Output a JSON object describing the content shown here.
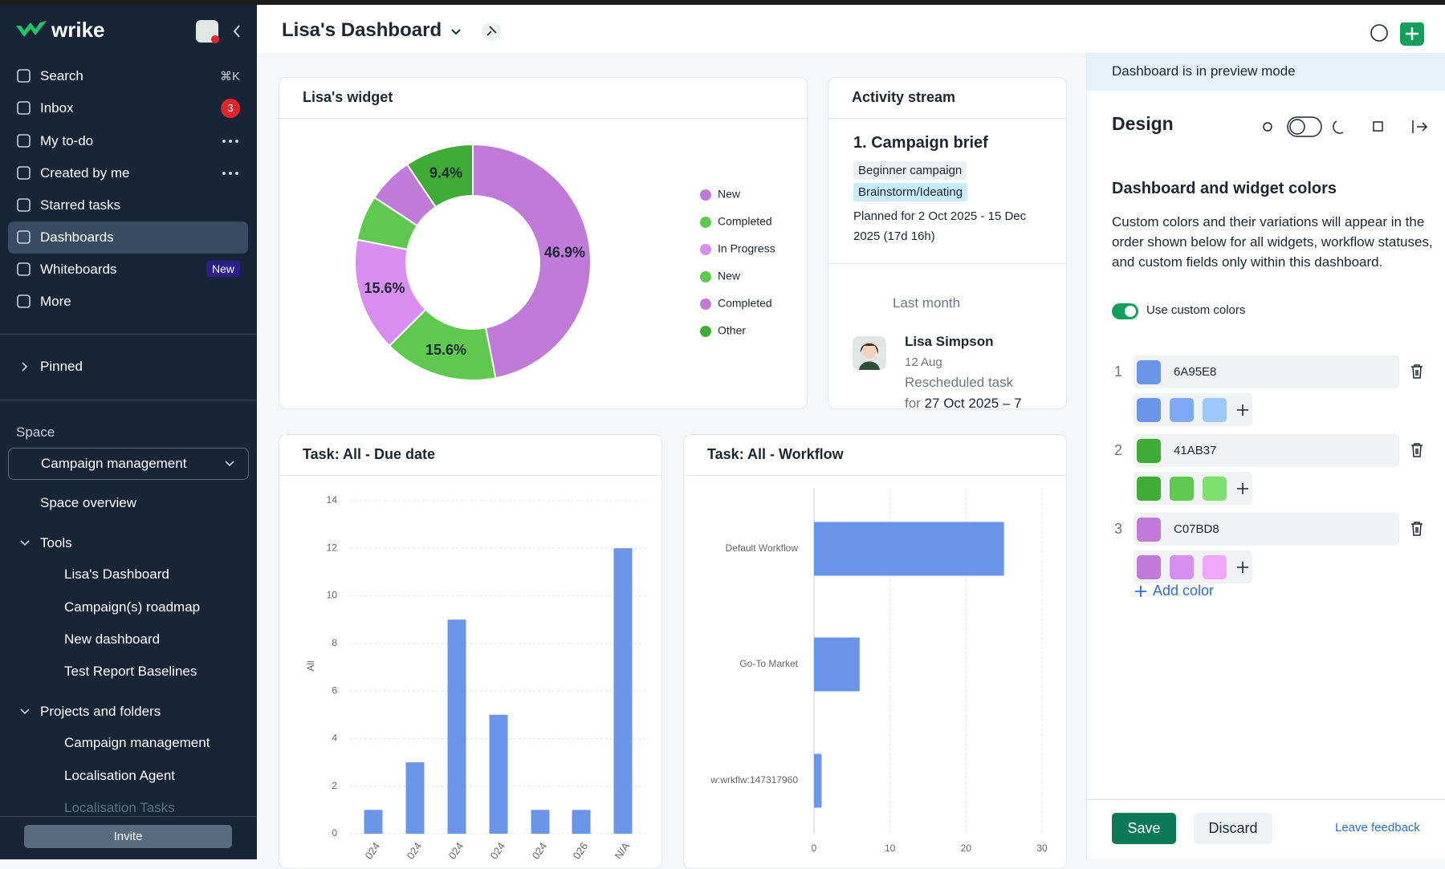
{
  "sidebar": {
    "logo": "wrike",
    "nav": [
      {
        "label": "Search",
        "shortcut": "⌘K"
      },
      {
        "label": "Inbox",
        "badge": "3"
      },
      {
        "label": "My to-do"
      },
      {
        "label": "Created by me"
      },
      {
        "label": "Starred tasks"
      },
      {
        "label": "Dashboards"
      },
      {
        "label": "Whiteboards",
        "badge": "New"
      },
      {
        "label": "More"
      }
    ],
    "pinned": "Pinned",
    "space_heading": "Space",
    "space": "Campaign management",
    "space_overview": "Space overview",
    "tools": {
      "label": "Tools",
      "items": [
        "Lisa's Dashboard",
        "Campaign(s) roadmap",
        "New dashboard",
        "Test Report Baselines"
      ]
    },
    "projects": {
      "label": "Projects and folders",
      "items": [
        "Campaign management",
        "Localisation Agent",
        "Localisation Tasks"
      ]
    },
    "invite": "Invite"
  },
  "header": {
    "title": "Lisa's Dashboard"
  },
  "activity": {
    "title": "Activity stream",
    "task": "1. Campaign brief",
    "tags": [
      "Beginner campaign",
      "Brainstorm/Ideating"
    ],
    "planned": "Planned for 2 Oct 2025 - 15 Dec 2025 (17d 16h)",
    "period": "Last month",
    "entry": {
      "user": "Lisa Simpson",
      "date": "12 Aug",
      "action": "Rescheduled task",
      "detail_prefix": "for",
      "detail": "27 Oct 2025 – 7"
    }
  },
  "chart_data": [
    {
      "type": "pie",
      "title": "Lisa's widget",
      "categories": [
        "New",
        "Completed",
        "In Progress",
        "New",
        "Completed",
        "Other"
      ],
      "values": [
        46.9,
        15.6,
        15.6,
        6.2,
        6.3,
        9.4
      ],
      "value_labels": [
        "46.9%",
        "15.6%",
        "15.6%",
        null,
        null,
        "9.4%"
      ],
      "colors": [
        "#C07BD8",
        "#5FC94F",
        "#D78EF0",
        "#5FC94F",
        "#C07BD8",
        "#41AB37"
      ]
    },
    {
      "type": "bar",
      "title": "Task: All - Due date",
      "y_label": "All",
      "categories": [
        "024",
        "024",
        "024",
        "024",
        "024",
        "026",
        "N/A"
      ],
      "values": [
        1,
        3,
        9,
        5,
        1,
        1,
        12
      ],
      "color": "#6A95E8",
      "ylim": [
        0,
        14
      ],
      "yticks": [
        0,
        2,
        4,
        6,
        8,
        10,
        12,
        14
      ],
      "grid": true
    },
    {
      "type": "barh",
      "title": "Task: All - Workflow",
      "categories": [
        "Default Workflow",
        "Go-To Market",
        "w:wrkflw:147317960"
      ],
      "values": [
        25,
        6,
        1
      ],
      "color": "#6A95E8",
      "xlim": [
        0,
        30
      ],
      "xticks": [
        0,
        10,
        20,
        30
      ],
      "grid": true
    }
  ],
  "design": {
    "banner": "Dashboard is in preview mode",
    "title": "Design",
    "section": "Dashboard and widget colors",
    "description": "Custom colors and their variations will appear in the order shown below for all widgets, workflow statuses, and custom fields only within this dashboard.",
    "toggle": "Use custom colors",
    "colors": [
      {
        "index": 1,
        "hex": "6A95E8",
        "variations": [
          "#6A95E8",
          "#7FA8F5",
          "#9CC8FA"
        ]
      },
      {
        "index": 2,
        "hex": "41AB37",
        "variations": [
          "#41AB37",
          "#5FC94F",
          "#7EE06E"
        ]
      },
      {
        "index": 3,
        "hex": "C07BD8",
        "variations": [
          "#C07BD8",
          "#D78EF0",
          "#F0A6FA"
        ]
      }
    ],
    "add": "Add color",
    "save": "Save",
    "discard": "Discard",
    "feedback": "Leave feedback"
  }
}
